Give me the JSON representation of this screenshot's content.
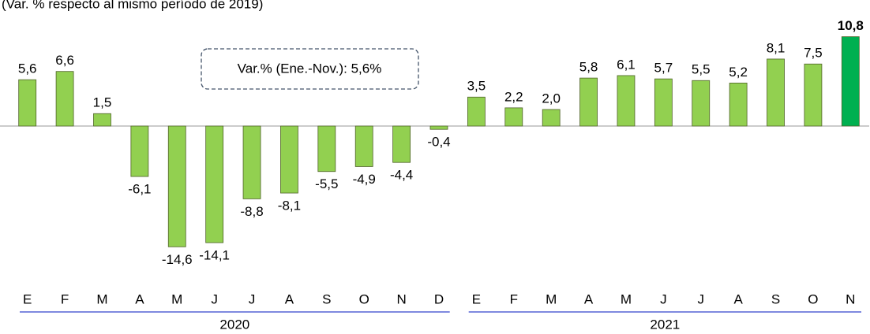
{
  "chart_data": {
    "type": "bar",
    "subtitle": "(Var. % respecto al mismo período de 2019)",
    "annotation": "Var.% (Ene.-Nov.): 5,6%",
    "categories": [
      "E",
      "F",
      "M",
      "A",
      "M",
      "J",
      "J",
      "A",
      "S",
      "O",
      "N",
      "D",
      "E",
      "F",
      "M",
      "A",
      "M",
      "J",
      "J",
      "A",
      "S",
      "O",
      "N"
    ],
    "values": [
      5.6,
      6.6,
      1.5,
      -6.1,
      -14.6,
      -14.1,
      -8.8,
      -8.1,
      -5.5,
      -4.9,
      -4.4,
      -0.4,
      3.5,
      2.2,
      2.0,
      5.8,
      6.1,
      5.7,
      5.5,
      5.2,
      8.1,
      7.5,
      10.8
    ],
    "value_labels": [
      "5,6",
      "6,6",
      "1,5",
      "-6,1",
      "-14,6",
      "-14,1",
      "-8,8",
      "-8,1",
      "-5,5",
      "-4,9",
      "-4,4",
      "-0,4",
      "3,5",
      "2,2",
      "2,0",
      "5,8",
      "6,1",
      "5,7",
      "5,5",
      "5,2",
      "8,1",
      "7,5",
      "10,8"
    ],
    "color": "#92d050",
    "highlight_color": "#00b050",
    "groups": [
      {
        "label": "2020",
        "count": 12
      },
      {
        "label": "2021",
        "count": 11
      }
    ],
    "ylim": [
      -16,
      12
    ]
  }
}
